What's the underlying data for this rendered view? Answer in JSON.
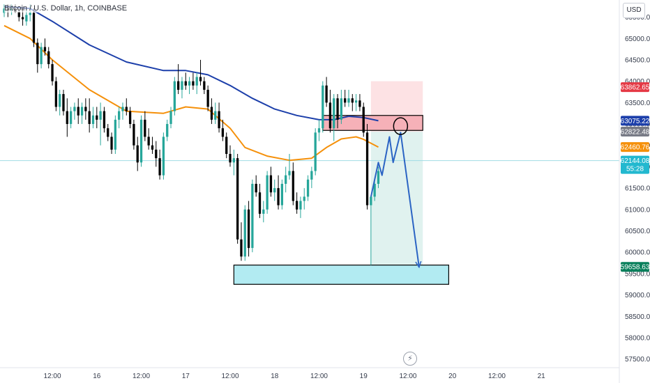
{
  "header": {
    "symbol_label": "Bitcoin / U.S. Dollar, 1h, COINBASE",
    "currency_button": "USD"
  },
  "icons": {
    "replay": "lightning-icon"
  },
  "colors": {
    "bull": "#26a69a",
    "bear": "#000000",
    "ema_slow": "#1c3faa",
    "ema_fast": "#f5900a",
    "zone_red": "#f6b1b8",
    "zone_blue": "#b2ebf2",
    "stop_fill": "#fde2e4",
    "target_fill": "#e0f2ef",
    "projection": "#2b64c4",
    "crosshair": "#9fdbe4"
  },
  "chart_data": {
    "type": "candlestick",
    "symbol": "Bitcoin / U.S. Dollar",
    "interval": "1h",
    "exchange": "COINBASE",
    "currency": "USD",
    "ylim": [
      57300,
      65900
    ],
    "y_ticks": [
      57500,
      58000,
      58500,
      59000,
      59500,
      60000,
      60500,
      61000,
      61500,
      62000,
      62500,
      63000,
      63500,
      64000,
      64500,
      65000,
      65500
    ],
    "y_tick_labels": [
      "57500.00",
      "58000.00",
      "58500.00",
      "59000.00",
      "59500.00",
      "60000.00",
      "60500.00",
      "61000.00",
      "61500.00",
      "62000.00",
      "62500.00",
      "63000.00",
      "63500.00",
      "64000.00",
      "64500.00",
      "65000.00",
      "65500.00"
    ],
    "x_range_hours": [
      -13,
      141
    ],
    "x_ticks": [
      {
        "hour": 0,
        "label": "12:00"
      },
      {
        "hour": 12,
        "label": "16"
      },
      {
        "hour": 24,
        "label": "12:00"
      },
      {
        "hour": 36,
        "label": "17"
      },
      {
        "hour": 48,
        "label": "12:00"
      },
      {
        "hour": 60,
        "label": "18"
      },
      {
        "hour": 72,
        "label": "12:00"
      },
      {
        "hour": 84,
        "label": "19"
      },
      {
        "hour": 96,
        "label": "12:00"
      },
      {
        "hour": 108,
        "label": "20"
      },
      {
        "hour": 120,
        "label": "12:00"
      },
      {
        "hour": 132,
        "label": "21"
      }
    ],
    "candles": [
      [
        -13,
        65600,
        65800,
        65500,
        65700
      ],
      [
        -12,
        65700,
        65800,
        65500,
        65650
      ],
      [
        -11,
        65650,
        65800,
        65550,
        65700
      ],
      [
        -10,
        65700,
        65800,
        65600,
        65620
      ],
      [
        -9,
        65620,
        65700,
        65400,
        65500
      ],
      [
        -8,
        65500,
        65700,
        65300,
        65450
      ],
      [
        -7,
        65400,
        65700,
        65300,
        65550
      ],
      [
        -6,
        65550,
        65800,
        65400,
        65600
      ],
      [
        -5,
        65600,
        65700,
        64800,
        64900
      ],
      [
        -4,
        64900,
        65000,
        64200,
        64400
      ],
      [
        -3,
        64400,
        64900,
        64300,
        64800
      ],
      [
        -2,
        64800,
        65000,
        64600,
        64700
      ],
      [
        -1,
        64700,
        64800,
        64300,
        64400
      ],
      [
        0,
        64400,
        64500,
        63900,
        64000
      ],
      [
        1,
        64000,
        64100,
        63300,
        63400
      ],
      [
        2,
        63400,
        63800,
        63200,
        63700
      ],
      [
        3,
        63700,
        63800,
        63200,
        63300
      ],
      [
        4,
        63300,
        63600,
        62700,
        63000
      ],
      [
        5,
        63000,
        63400,
        62900,
        63300
      ],
      [
        6,
        63300,
        63500,
        63100,
        63400
      ],
      [
        7,
        63400,
        63600,
        63000,
        63200
      ],
      [
        8,
        63200,
        63500,
        63000,
        63400
      ],
      [
        9,
        63400,
        63600,
        63100,
        63300
      ],
      [
        10,
        63300,
        63600,
        62800,
        63000
      ],
      [
        11,
        63000,
        63400,
        62900,
        63200
      ],
      [
        12,
        63200,
        63400,
        62900,
        63100
      ],
      [
        13,
        63100,
        63500,
        62500,
        63300
      ],
      [
        14,
        63300,
        63400,
        62800,
        62900
      ],
      [
        15,
        62900,
        63000,
        62600,
        62700
      ],
      [
        16,
        62700,
        62800,
        62300,
        62400
      ],
      [
        17,
        62400,
        63200,
        62300,
        63100
      ],
      [
        18,
        63100,
        63400,
        62900,
        63300
      ],
      [
        19,
        63300,
        63500,
        63100,
        63400
      ],
      [
        20,
        63400,
        63600,
        63200,
        63300
      ],
      [
        21,
        63300,
        63400,
        62900,
        63000
      ],
      [
        22,
        63000,
        63100,
        62400,
        62500
      ],
      [
        23,
        62500,
        62700,
        61900,
        62100
      ],
      [
        24,
        62100,
        63200,
        62000,
        63100
      ],
      [
        25,
        63100,
        63300,
        62600,
        62700
      ],
      [
        26,
        62700,
        62900,
        62400,
        62500
      ],
      [
        27,
        62500,
        62700,
        62300,
        62400
      ],
      [
        28,
        62400,
        62600,
        62000,
        62200
      ],
      [
        29,
        62200,
        62400,
        61700,
        61800
      ],
      [
        30,
        61800,
        62800,
        61700,
        62700
      ],
      [
        31,
        62700,
        63100,
        62600,
        63000
      ],
      [
        32,
        63000,
        63400,
        62900,
        63300
      ],
      [
        33,
        63300,
        64100,
        63200,
        64000
      ],
      [
        34,
        64000,
        64400,
        63700,
        63800
      ],
      [
        35,
        63800,
        64100,
        63600,
        64000
      ],
      [
        36,
        64000,
        64200,
        63800,
        63900
      ],
      [
        37,
        63900,
        64100,
        63700,
        64000
      ],
      [
        38,
        64000,
        64200,
        63800,
        63900
      ],
      [
        39,
        63900,
        64200,
        63700,
        64100
      ],
      [
        40,
        64100,
        64500,
        63900,
        64000
      ],
      [
        41,
        64000,
        64100,
        63700,
        63800
      ],
      [
        42,
        63800,
        63900,
        63300,
        63400
      ],
      [
        43,
        63400,
        63600,
        63000,
        63100
      ],
      [
        44,
        63100,
        63500,
        63000,
        63300
      ],
      [
        45,
        63300,
        63500,
        62800,
        62900
      ],
      [
        46,
        62900,
        63100,
        62600,
        62700
      ],
      [
        47,
        62700,
        62800,
        62200,
        62300
      ],
      [
        48,
        62300,
        62500,
        62000,
        62100
      ],
      [
        49,
        62100,
        62400,
        61800,
        62200
      ],
      [
        50,
        62200,
        62300,
        60200,
        60300
      ],
      [
        51,
        60300,
        60700,
        59800,
        59900
      ],
      [
        52,
        59900,
        61100,
        59800,
        61000
      ],
      [
        53,
        61000,
        61200,
        59900,
        60100
      ],
      [
        54,
        60100,
        61700,
        60000,
        61600
      ],
      [
        55,
        61600,
        61800,
        61300,
        61400
      ],
      [
        56,
        61400,
        61600,
        60800,
        60900
      ],
      [
        57,
        60900,
        61200,
        60700,
        61000
      ],
      [
        58,
        61000,
        61900,
        60900,
        61800
      ],
      [
        59,
        61800,
        62000,
        61300,
        61400
      ],
      [
        60,
        61400,
        61700,
        61200,
        61500
      ],
      [
        61,
        61500,
        61800,
        61000,
        61100
      ],
      [
        62,
        61100,
        61700,
        61000,
        61600
      ],
      [
        63,
        61600,
        62000,
        61400,
        61800
      ],
      [
        64,
        61800,
        62300,
        61700,
        61900
      ],
      [
        65,
        61900,
        62100,
        61100,
        61200
      ],
      [
        66,
        61200,
        61400,
        60900,
        61000
      ],
      [
        67,
        61000,
        61300,
        60800,
        61200
      ],
      [
        68,
        61200,
        61500,
        61000,
        61300
      ],
      [
        69,
        61300,
        61800,
        61200,
        61700
      ],
      [
        70,
        61700,
        62000,
        61500,
        61900
      ],
      [
        71,
        61900,
        62900,
        61800,
        62800
      ],
      [
        72,
        62800,
        63100,
        62600,
        62900
      ],
      [
        73,
        62900,
        64000,
        62800,
        63900
      ],
      [
        74,
        63900,
        64100,
        63400,
        63500
      ],
      [
        75,
        63500,
        63800,
        62800,
        62900
      ],
      [
        76,
        62900,
        63700,
        62600,
        63600
      ],
      [
        77,
        63600,
        63700,
        62900,
        63100
      ],
      [
        78,
        63100,
        63800,
        63000,
        63600
      ],
      [
        79,
        63600,
        63800,
        63400,
        63500
      ],
      [
        80,
        63500,
        63800,
        63400,
        63600
      ],
      [
        81,
        63600,
        63700,
        63300,
        63500
      ],
      [
        82,
        63500,
        63700,
        63300,
        63550
      ],
      [
        83,
        63550,
        63700,
        63300,
        63400
      ],
      [
        84,
        63400,
        63500,
        62700,
        62800
      ],
      [
        85,
        62800,
        63000,
        61000,
        61100
      ],
      [
        86,
        61100,
        61300,
        59700,
        61300
      ],
      [
        87,
        61300,
        61700,
        61200,
        61600
      ],
      [
        88,
        61600,
        62000,
        61500,
        61900
      ]
    ],
    "ema_fast": [
      [
        -13,
        65300
      ],
      [
        -6,
        65000
      ],
      [
        0,
        64500
      ],
      [
        10,
        63800
      ],
      [
        20,
        63300
      ],
      [
        30,
        63250
      ],
      [
        36,
        63400
      ],
      [
        42,
        63350
      ],
      [
        48,
        62900
      ],
      [
        52,
        62450
      ],
      [
        58,
        62250
      ],
      [
        64,
        62150
      ],
      [
        70,
        62200
      ],
      [
        74,
        62450
      ],
      [
        78,
        62650
      ],
      [
        82,
        62700
      ],
      [
        84,
        62640
      ],
      [
        88,
        62460
      ]
    ],
    "ema_slow": [
      [
        -13,
        65750
      ],
      [
        -6,
        65700
      ],
      [
        0,
        65400
      ],
      [
        10,
        64850
      ],
      [
        20,
        64450
      ],
      [
        30,
        64250
      ],
      [
        36,
        64250
      ],
      [
        42,
        64150
      ],
      [
        48,
        63900
      ],
      [
        54,
        63600
      ],
      [
        60,
        63350
      ],
      [
        66,
        63200
      ],
      [
        72,
        63100
      ],
      [
        76,
        63100
      ],
      [
        80,
        63180
      ],
      [
        84,
        63150
      ],
      [
        88,
        63075
      ]
    ],
    "zones": [
      {
        "name": "resistance",
        "x0": 73,
        "x1": 100,
        "y0": 62850,
        "y1": 63200
      },
      {
        "name": "support",
        "x0": 49,
        "x1": 107,
        "y0": 59250,
        "y1": 59700
      }
    ],
    "position": {
      "x0": 86,
      "x1": 100,
      "stop_top": 64000,
      "entry": 62822.48,
      "target": 59650
    },
    "projection_path": [
      [
        86,
        61300
      ],
      [
        88,
        62100
      ],
      [
        89,
        61800
      ],
      [
        91,
        62700
      ],
      [
        92,
        62100
      ],
      [
        94,
        62800
      ],
      [
        99,
        59650
      ]
    ],
    "circle_point": [
      94,
      62950
    ],
    "last_price": 62144.08,
    "countdown": "55:28",
    "price_tags": [
      {
        "value": 63862.65,
        "label": "63862.65",
        "color": "#e53945"
      },
      {
        "value": 63075.22,
        "label": "63075.22",
        "color": "#1c3faa"
      },
      {
        "value": 62822.48,
        "label": "62822.48",
        "color": "#787b86"
      },
      {
        "value": 62460.76,
        "label": "62460.76",
        "color": "#f5900a"
      },
      {
        "value": 62144.08,
        "label": "62144.08",
        "color": "#22b8cf",
        "sub": "55:28"
      },
      {
        "value": 59658.63,
        "label": "59658.63",
        "color": "#087f5b"
      }
    ]
  }
}
